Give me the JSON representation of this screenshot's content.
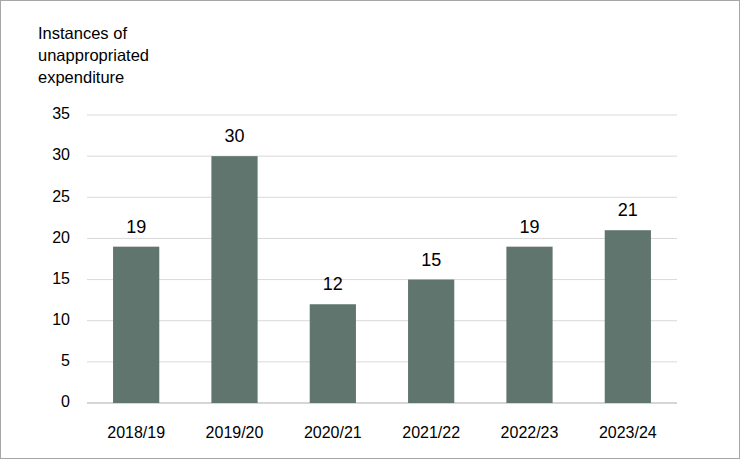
{
  "chart_data": {
    "type": "bar",
    "ylabel": "Instances of\nunappropriated\nexpenditure",
    "categories": [
      "2018/19",
      "2019/20",
      "2020/21",
      "2021/22",
      "2022/23",
      "2023/24"
    ],
    "values": [
      19,
      30,
      12,
      15,
      19,
      21
    ],
    "color": "#5f756e",
    "ylim": [
      0,
      35
    ],
    "yticks": [
      0,
      5,
      10,
      15,
      20,
      25,
      30,
      35
    ],
    "grid": true,
    "data_labels": true
  }
}
